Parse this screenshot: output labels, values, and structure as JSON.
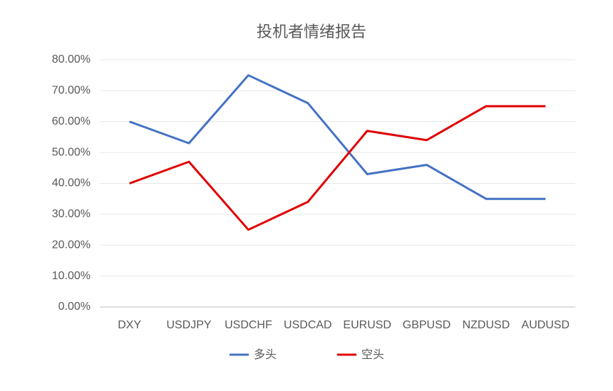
{
  "chart_data": {
    "type": "line",
    "title": "投机者情绪报告",
    "categories": [
      "DXY",
      "USDJPY",
      "USDCHF",
      "USDCAD",
      "EURUSD",
      "GBPUSD",
      "NZDUSD",
      "AUDUSD"
    ],
    "series": [
      {
        "name": "多头",
        "color": "#4472c4",
        "values": [
          60,
          53,
          75,
          66,
          43,
          46,
          35,
          35
        ]
      },
      {
        "name": "空头",
        "color": "#e00000",
        "values": [
          40,
          47,
          25,
          34,
          57,
          54,
          65,
          65
        ]
      }
    ],
    "ylim": [
      0,
      80
    ],
    "yticks": [
      {
        "value": 0,
        "label": "0.00%"
      },
      {
        "value": 10,
        "label": "10.00%"
      },
      {
        "value": 20,
        "label": "20.00%"
      },
      {
        "value": 30,
        "label": "30.00%"
      },
      {
        "value": 40,
        "label": "40.00%"
      },
      {
        "value": 50,
        "label": "50.00%"
      },
      {
        "value": 60,
        "label": "60.00%"
      },
      {
        "value": 70,
        "label": "70.00%"
      },
      {
        "value": 80,
        "label": "80.00%"
      }
    ],
    "grid": true,
    "legend": "bottom"
  }
}
